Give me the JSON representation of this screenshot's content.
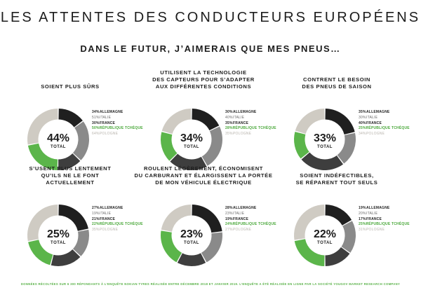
{
  "title": "LES ATTENTES DES CONDUCTEURS EUROPÉENS",
  "subtitle": "DANS LE FUTUR, J’AIMERAIS QUE MES PNEUS…",
  "footer": "DONNÉES RÉCOLTÉES SUR 6 300 RÉPONDANTS À L’ENQUÊTE NOKIAN TYRES RÉALISÉE ENTRE DÉCEMBRE 2018 ET JANVIER 2019. L’ENQUÊTE A ÉTÉ RÉALISÉE EN LIGNE PAR LA SOCIÉTÉ YOUGOV MARKET RESEARCH COMPANY",
  "total_label": "TOTAL",
  "colors": {
    "ALLEMAGNE": "#1f1f1f",
    "ITALIE": "#8a8a8a",
    "FRANCE": "#3e3e3e",
    "RÉPUBLIQUE TCHÈQUE": "#5bb54a",
    "POLOGNE": "#cfcbc3"
  },
  "chart_data": [
    {
      "type": "pie",
      "title": [
        "SOIENT PLUS SÛRS"
      ],
      "total": "44%",
      "series": [
        {
          "name": "ALLEMAGNE",
          "value": 34,
          "label": "34%"
        },
        {
          "name": "ITALIE",
          "value": 51,
          "label": "51%"
        },
        {
          "name": "FRANCE",
          "value": 30,
          "label": "30%"
        },
        {
          "name": "RÉPUBLIQUE TCHÈQUE",
          "value": 50,
          "label": "50%"
        },
        {
          "name": "POLOGNE",
          "value": 64,
          "label": "64%"
        }
      ]
    },
    {
      "type": "pie",
      "title": [
        "UTILISENT LA TECHNOLOGIE",
        "DES CAPTEURS POUR S’ADAPTER",
        "AUX DIFFÉRENTES CONDITIONS"
      ],
      "total": "34%",
      "series": [
        {
          "name": "ALLEMAGNE",
          "value": 30,
          "label": "30%"
        },
        {
          "name": "ITALIE",
          "value": 40,
          "label": "40%"
        },
        {
          "name": "FRANCE",
          "value": 35,
          "label": "35%"
        },
        {
          "name": "RÉPUBLIQUE TCHÈQUE",
          "value": 28,
          "label": "28%"
        },
        {
          "name": "POLOGNE",
          "value": 35,
          "label": "35%"
        }
      ]
    },
    {
      "type": "pie",
      "title": [
        "CONTRENT LE BESOIN",
        "DES PNEUS DE SAISON"
      ],
      "total": "33%",
      "series": [
        {
          "name": "ALLEMAGNE",
          "value": 35,
          "label": "35%"
        },
        {
          "name": "ITALIE",
          "value": 30,
          "label": "30%"
        },
        {
          "name": "FRANCE",
          "value": 40,
          "label": "40%"
        },
        {
          "name": "RÉPUBLIQUE TCHÈQUE",
          "value": 25,
          "label": "25%"
        },
        {
          "name": "POLOGNE",
          "value": 34,
          "label": "34%"
        }
      ]
    },
    {
      "type": "pie",
      "title": [
        "S’USENT PLUS LENTEMENT",
        "QU’ILS NE LE FONT",
        "ACTUELLEMENT"
      ],
      "total": "25%",
      "series": [
        {
          "name": "ALLEMAGNE",
          "value": 27,
          "label": "27%"
        },
        {
          "name": "ITALIE",
          "value": 19,
          "label": "19%"
        },
        {
          "name": "FRANCE",
          "value": 21,
          "label": "21%"
        },
        {
          "name": "RÉPUBLIQUE TCHÈQUE",
          "value": 22,
          "label": "22%"
        },
        {
          "name": "POLOGNE",
          "value": 35,
          "label": "35%"
        }
      ]
    },
    {
      "type": "pie",
      "title": [
        "ROULENT LÉGÈREMENT, ÉCONOMISENT",
        "DU CARBURANT ET ÉLARGISSENT LA PORTÉE",
        "DE MON VÉHICULE ÉLECTRIQUE"
      ],
      "total": "23%",
      "series": [
        {
          "name": "ALLEMAGNE",
          "value": 28,
          "label": "28%"
        },
        {
          "name": "ITALIE",
          "value": 23,
          "label": "23%"
        },
        {
          "name": "FRANCE",
          "value": 19,
          "label": "19%"
        },
        {
          "name": "RÉPUBLIQUE TCHÈQUE",
          "value": 24,
          "label": "24%"
        },
        {
          "name": "POLOGNE",
          "value": 27,
          "label": "27%"
        }
      ]
    },
    {
      "type": "pie",
      "title": [
        "SOIENT INDÉFECTIBLES,",
        "SE RÉPARENT TOUT SEULS"
      ],
      "total": "22%",
      "series": [
        {
          "name": "ALLEMAGNE",
          "value": 19,
          "label": "19%"
        },
        {
          "name": "ITALIE",
          "value": 20,
          "label": "20%"
        },
        {
          "name": "FRANCE",
          "value": 17,
          "label": "17%"
        },
        {
          "name": "RÉPUBLIQUE TCHÈQUE",
          "value": 25,
          "label": "25%"
        },
        {
          "name": "POLOGNE",
          "value": 31,
          "label": "31%"
        }
      ]
    }
  ]
}
